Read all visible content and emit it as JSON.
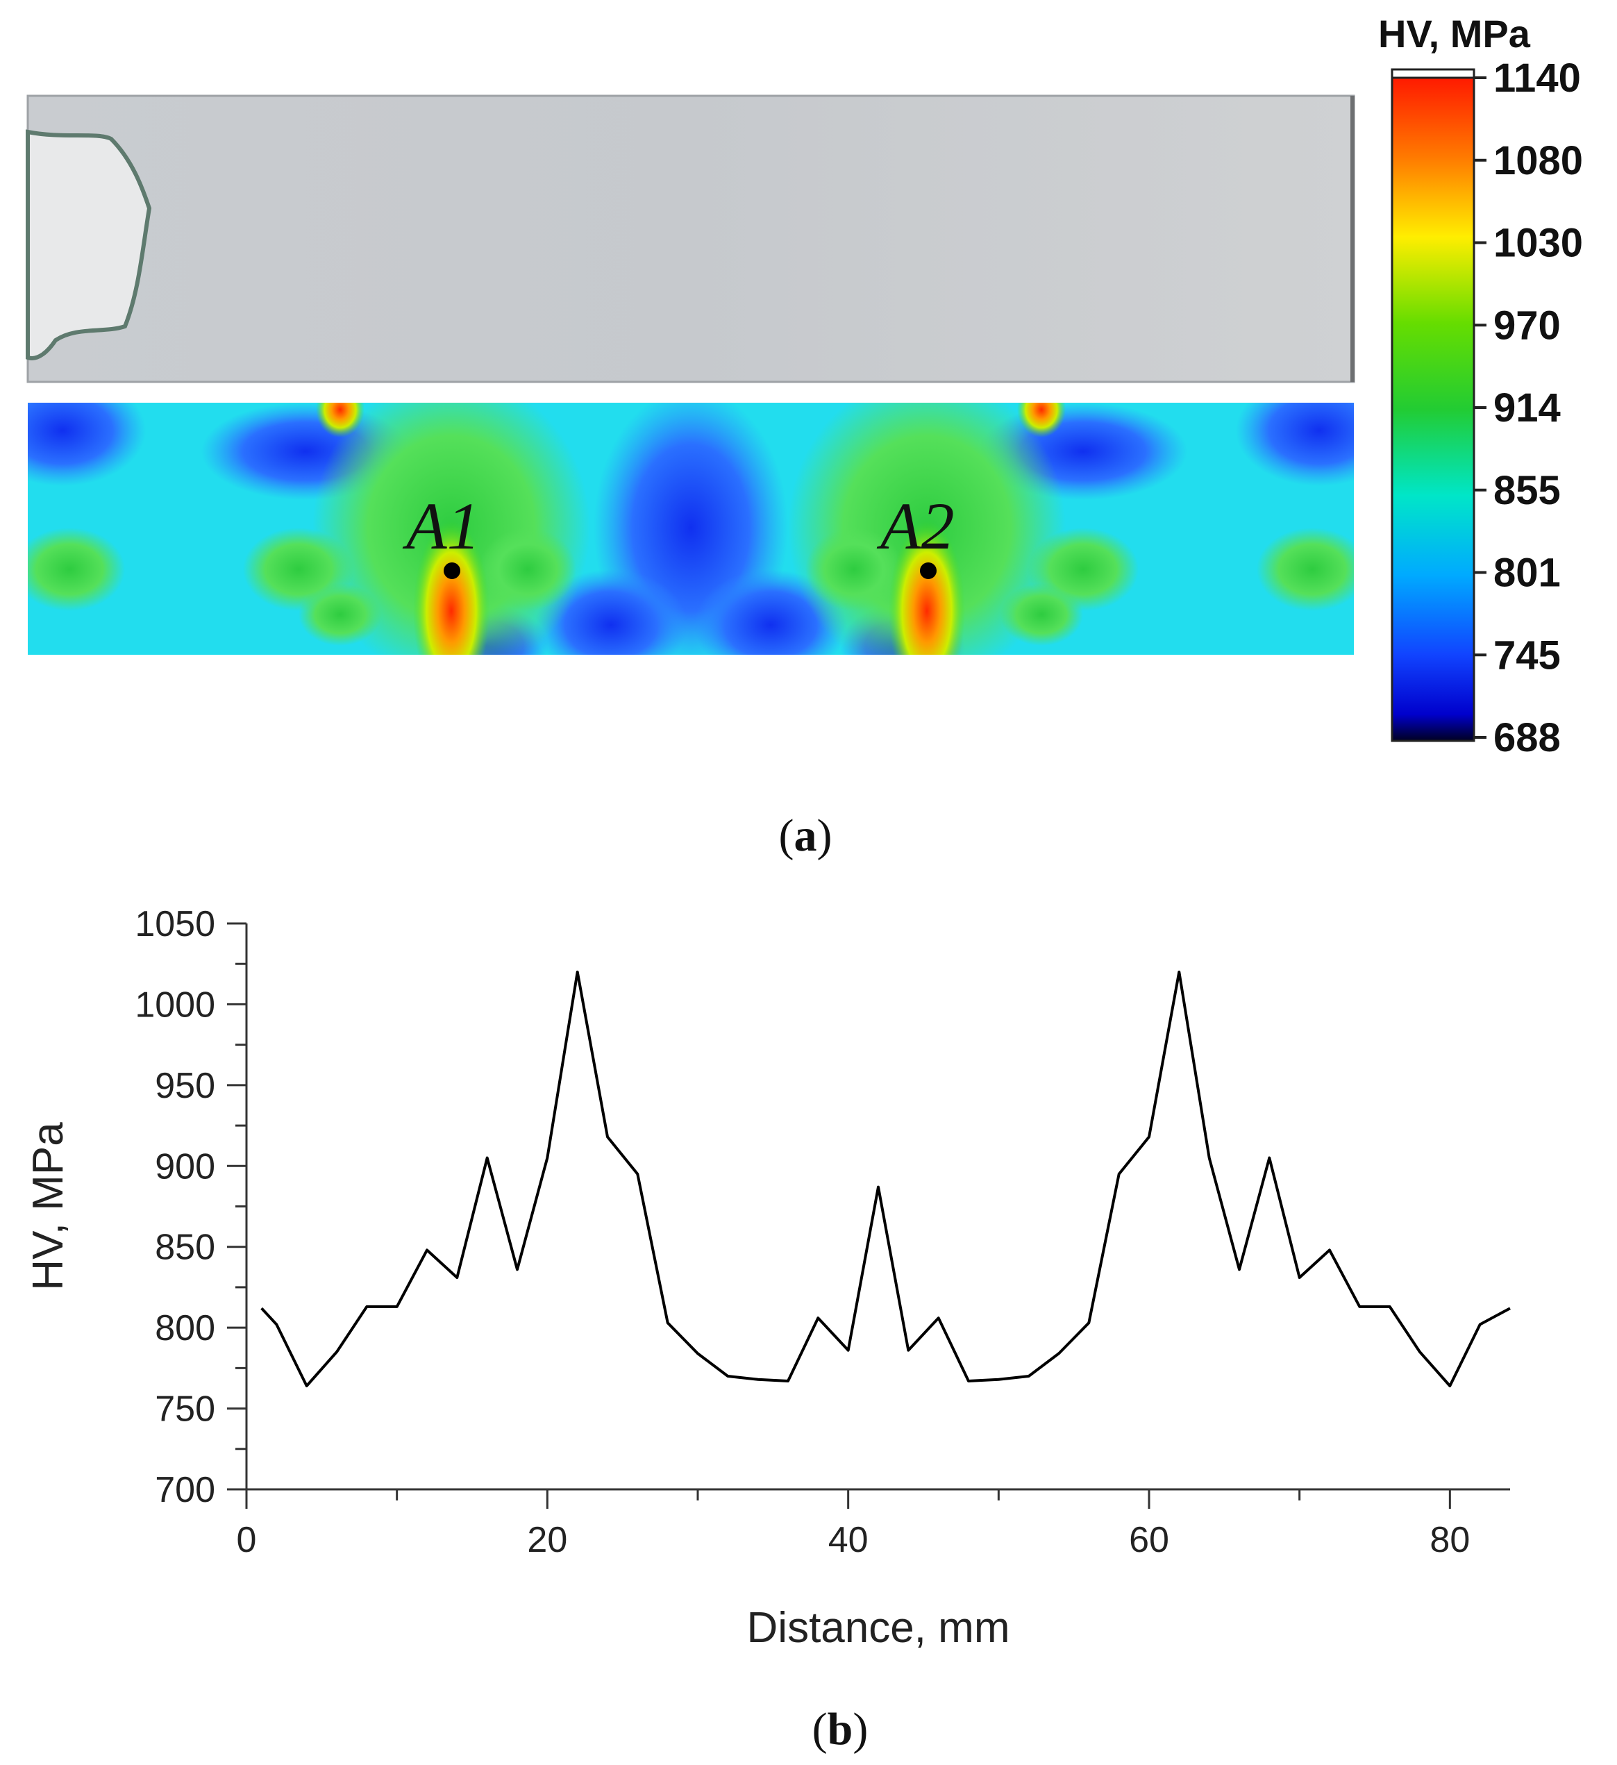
{
  "panel_a": {
    "label_open": "(",
    "label_letter": "a",
    "label_close": ")",
    "point_labels": [
      "A1",
      "A2"
    ],
    "colorbar": {
      "title": "HV, MPa",
      "ticks": [
        1140,
        1080,
        1030,
        970,
        914,
        855,
        801,
        745,
        688
      ],
      "top_color": "#ff1a00",
      "bottom_color": "#000000"
    }
  },
  "panel_b": {
    "label_open": "(",
    "label_letter": "b",
    "label_close": ")"
  },
  "chart_data": {
    "type": "line",
    "title": "",
    "xlabel": "Distance, mm",
    "ylabel": "HV, MPa",
    "xlim": [
      0,
      84
    ],
    "ylim": [
      700,
      1050
    ],
    "x_ticks": [
      0,
      20,
      40,
      60,
      80
    ],
    "y_ticks": [
      700,
      750,
      800,
      850,
      900,
      950,
      1000,
      1050
    ],
    "grid": false,
    "series": [
      {
        "name": "HV",
        "color": "#000000",
        "x": [
          1,
          2,
          4,
          6,
          8,
          10,
          12,
          14,
          16,
          18,
          20,
          22,
          24,
          26,
          28,
          30,
          32,
          34,
          36,
          38,
          40,
          42,
          44,
          46,
          48,
          50,
          52,
          54,
          56,
          58,
          60,
          62,
          64,
          66,
          68,
          70,
          72,
          74,
          76,
          78,
          80,
          82,
          84
        ],
        "y": [
          812,
          802,
          764,
          785,
          813,
          813,
          848,
          831,
          905,
          836,
          905,
          1020,
          918,
          895,
          803,
          784,
          770,
          768,
          767,
          806,
          786,
          887,
          786,
          806,
          767,
          768,
          770,
          784,
          803,
          895,
          918,
          1020,
          905,
          836,
          905,
          831,
          848,
          813,
          813,
          785,
          764,
          802,
          812
        ]
      }
    ]
  }
}
